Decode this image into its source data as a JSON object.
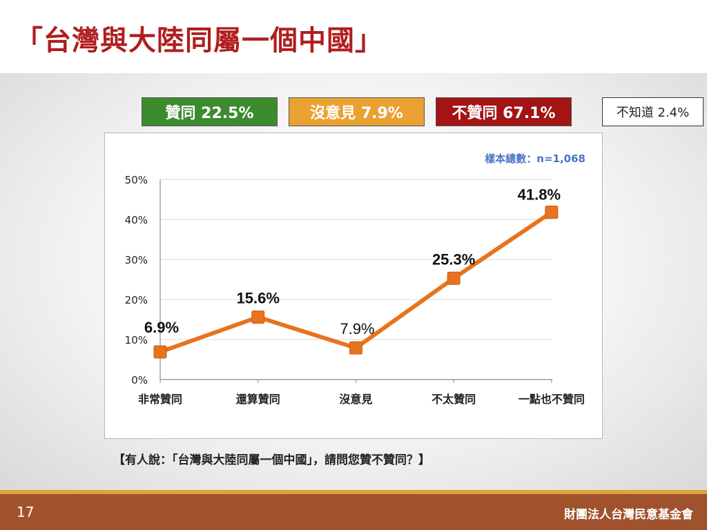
{
  "slide": {
    "title": "「台灣與大陸同屬一個中國」",
    "question": "【有人說：「台灣與大陸同屬一個中國」，請問您贊不贊同？】",
    "page_number": "17",
    "organization": "財團法人台灣民意基金會"
  },
  "summary": {
    "agree": "贊同 22.5%",
    "neutral": "沒意見 7.9%",
    "disagree": "不贊同 67.1%",
    "unknown": "不知道 2.4%"
  },
  "colors": {
    "title": "#b01e1e",
    "agree": "#3d8b2f",
    "neutral": "#e9a131",
    "disagree": "#a31414",
    "line": "#e8731e",
    "sample_text": "#4a72c8",
    "footer": "#a0522d"
  },
  "chart_data": {
    "type": "line",
    "sample_size": "樣本總數：n=1,068",
    "categories": [
      "非常贊同",
      "還算贊同",
      "沒意見",
      "不太贊同",
      "一點也不贊同"
    ],
    "values": [
      6.9,
      15.6,
      7.9,
      25.3,
      41.8
    ],
    "data_labels": [
      "6.9%",
      "15.6%",
      "7.9%",
      "25.3%",
      "41.8%"
    ],
    "ylim": [
      0,
      50
    ],
    "y_ticks": [
      0,
      10,
      20,
      30,
      40,
      50
    ],
    "y_tick_labels": [
      "0%",
      "10%",
      "20%",
      "30%",
      "40%",
      "50%"
    ],
    "grid": true,
    "legend": "none"
  }
}
